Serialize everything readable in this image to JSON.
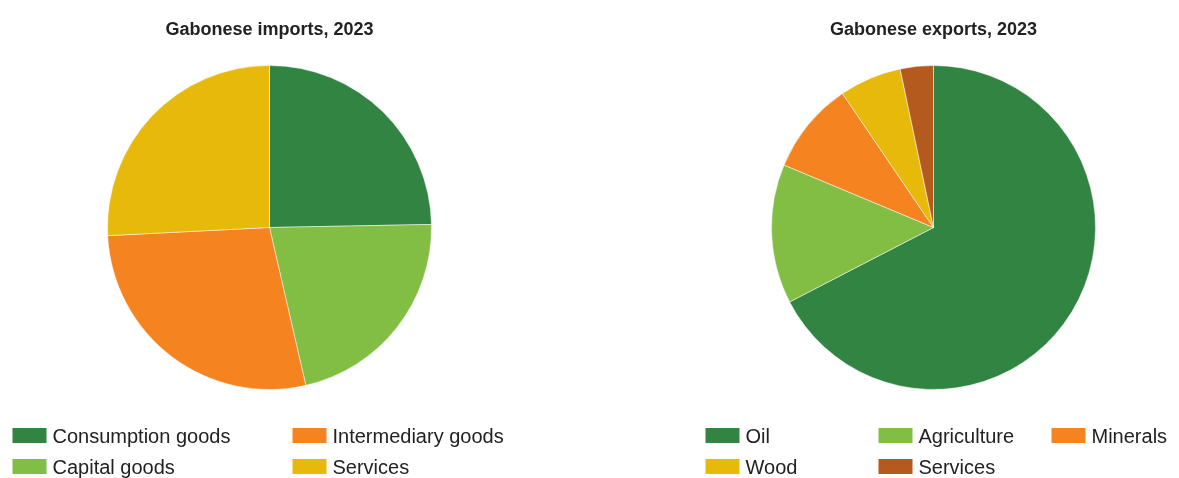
{
  "chart_data": [
    {
      "type": "pie",
      "title": "Gabonese imports, 2023",
      "legend": "bottom",
      "categories": [
        "Consumption goods",
        "Capital goods",
        "Intermediary goods",
        "Services"
      ],
      "values": [
        24.7,
        21.7,
        27.8,
        25.8
      ],
      "colors": [
        "#318441",
        "#82bd44",
        "#f58320",
        "#e7b90b"
      ]
    },
    {
      "type": "pie",
      "title": "Gabonese exports, 2023",
      "legend": "bottom",
      "categories": [
        "Oil",
        "Agriculture",
        "Minerals",
        "Wood",
        "Services"
      ],
      "values": [
        67.4,
        13.9,
        9.2,
        6.2,
        3.3
      ],
      "colors": [
        "#318441",
        "#82bd44",
        "#f58320",
        "#e7b90b",
        "#b45a1e"
      ]
    }
  ]
}
